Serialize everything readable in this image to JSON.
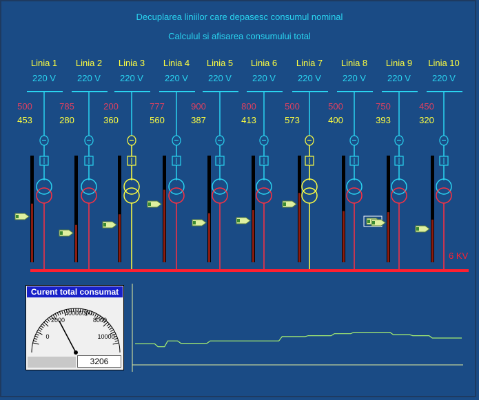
{
  "header": {
    "line1": "Decuplarea liniilor care depasesc consumul nominal",
    "line2": "Calculul si afisarea consumului total"
  },
  "lines": [
    {
      "name": "Linia 1",
      "voltage": "220 V",
      "nominal": "500",
      "actual": "453",
      "level": 0.55,
      "highlight": false
    },
    {
      "name": "Linia 2",
      "voltage": "220 V",
      "nominal": "785",
      "actual": "280",
      "level": 0.35,
      "highlight": false
    },
    {
      "name": "Linia 3",
      "voltage": "220 V",
      "nominal": "200",
      "actual": "360",
      "level": 0.45,
      "highlight": true
    },
    {
      "name": "Linia 4",
      "voltage": "220 V",
      "nominal": "777",
      "actual": "560",
      "level": 0.68,
      "highlight": false
    },
    {
      "name": "Linia 5",
      "voltage": "220 V",
      "nominal": "900",
      "actual": "387",
      "level": 0.46,
      "highlight": false
    },
    {
      "name": "Linia 6",
      "voltage": "220 V",
      "nominal": "800",
      "actual": "413",
      "level": 0.49,
      "highlight": false
    },
    {
      "name": "Linia 7",
      "voltage": "220 V",
      "nominal": "500",
      "actual": "573",
      "level": 0.65,
      "highlight": true
    },
    {
      "name": "Linia 8",
      "voltage": "220 V",
      "nominal": "500",
      "actual": "400",
      "level": 0.48,
      "highlight": false
    },
    {
      "name": "Linia 9",
      "voltage": "220 V",
      "nominal": "750",
      "actual": "393",
      "level": 0.47,
      "highlight": false
    },
    {
      "name": "Linia 10",
      "voltage": "220 V",
      "nominal": "450",
      "actual": "320",
      "level": 0.4,
      "highlight": false
    }
  ],
  "busbar_label": "6 KV",
  "gauge": {
    "title": "Curent total consumat",
    "ticks": [
      "0",
      "2000",
      "4000",
      "6000",
      "8000",
      "10000"
    ],
    "min": 0,
    "max": 10000,
    "value": "3206"
  },
  "trend": [
    [
      0,
      0.7
    ],
    [
      0.06,
      0.7
    ],
    [
      0.07,
      0.8
    ],
    [
      0.09,
      0.8
    ],
    [
      0.1,
      0.6
    ],
    [
      0.13,
      0.6
    ],
    [
      0.14,
      0.68
    ],
    [
      0.22,
      0.68
    ],
    [
      0.23,
      0.6
    ],
    [
      0.44,
      0.6
    ],
    [
      0.45,
      0.45
    ],
    [
      0.52,
      0.45
    ],
    [
      0.53,
      0.42
    ],
    [
      0.6,
      0.42
    ],
    [
      0.61,
      0.35
    ],
    [
      0.66,
      0.35
    ],
    [
      0.67,
      0.3
    ],
    [
      0.78,
      0.3
    ],
    [
      0.79,
      0.38
    ],
    [
      0.84,
      0.38
    ],
    [
      0.85,
      0.42
    ],
    [
      0.9,
      0.42
    ],
    [
      0.91,
      0.5
    ],
    [
      1,
      0.5
    ]
  ],
  "colors": {
    "cyan": "#2ad4f0",
    "red": "#ff3040",
    "yellow": "#ffff40",
    "green": "#c8f080",
    "nominal": "#e04060",
    "busbar": "#ff2030"
  }
}
